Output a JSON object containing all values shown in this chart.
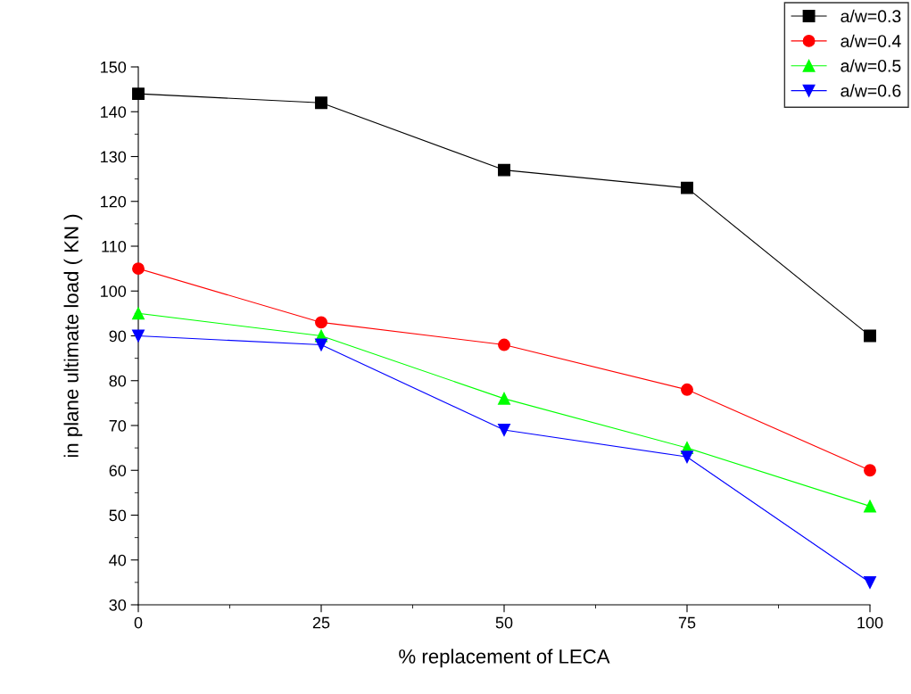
{
  "chart_data": {
    "type": "line",
    "xlabel": "% replacement of LECA",
    "ylabel": "in plane ultimate load ( KN )",
    "x": [
      0,
      25,
      50,
      75,
      100
    ],
    "series": [
      {
        "name": "a/w=0.3",
        "color": "#000000",
        "marker": "square",
        "values": [
          144,
          142,
          127,
          123,
          90
        ]
      },
      {
        "name": "a/w=0.4",
        "color": "#ff0000",
        "marker": "circle",
        "values": [
          105,
          93,
          88,
          78,
          60
        ]
      },
      {
        "name": "a/w=0.5",
        "color": "#00ff00",
        "marker": "triangle",
        "values": [
          95,
          90,
          76,
          65,
          52
        ]
      },
      {
        "name": "a/w=0.6",
        "color": "#0000ff",
        "marker": "triangle-down",
        "values": [
          90,
          88,
          69,
          63,
          35
        ]
      }
    ],
    "xlim": [
      0,
      100
    ],
    "xticks": [
      0,
      25,
      50,
      75,
      100
    ],
    "ylim": [
      30,
      150
    ],
    "yticks": [
      30,
      40,
      50,
      60,
      70,
      80,
      90,
      100,
      110,
      120,
      130,
      140,
      150
    ],
    "grid": false,
    "legend": "top right",
    "line_style": "solid"
  }
}
